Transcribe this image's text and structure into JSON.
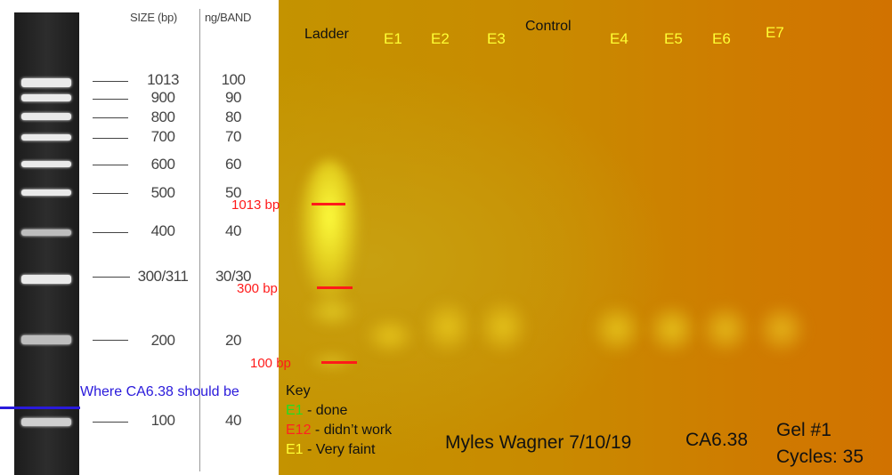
{
  "reference": {
    "size_header": "SIZE (bp)",
    "ng_header": "ng/BAND",
    "rows": [
      {
        "size": "1013",
        "ng": "100"
      },
      {
        "size": "900",
        "ng": "90"
      },
      {
        "size": "800",
        "ng": "80"
      },
      {
        "size": "700",
        "ng": "70"
      },
      {
        "size": "600",
        "ng": "60"
      },
      {
        "size": "500",
        "ng": "50"
      },
      {
        "size": "400",
        "ng": "40"
      },
      {
        "size": "300/311",
        "ng": "30/30"
      },
      {
        "size": "200",
        "ng": "20"
      },
      {
        "size": "100",
        "ng": "40"
      }
    ],
    "expected_note": "Where CA6.38 should be",
    "colors": {
      "note": "#2a1adb",
      "band": "#eaeaea",
      "lane": "#222222"
    }
  },
  "gel": {
    "lanes": [
      "Ladder",
      "E1",
      "E2",
      "E3",
      "Control",
      "E4",
      "E5",
      "E6",
      "E7"
    ],
    "markers": [
      "1013 bp",
      "300 bp",
      "100 bp"
    ],
    "key": {
      "title": "Key",
      "items": [
        {
          "code": "E1",
          "text": " - done",
          "color": "#22dd22"
        },
        {
          "code": "E12",
          "text": " - didn’t work",
          "color": "#ff2222"
        },
        {
          "code": "E1",
          "text": " - Very faint",
          "color": "#ffff33"
        }
      ]
    },
    "author": "Myles Wagner 7/10/19",
    "primer": "CA6.38",
    "gel_number": "Gel #1",
    "cycles": "Cycles: 35",
    "colors": {
      "lane_label": "#ffff33",
      "marker": "#ff1a1a"
    }
  }
}
